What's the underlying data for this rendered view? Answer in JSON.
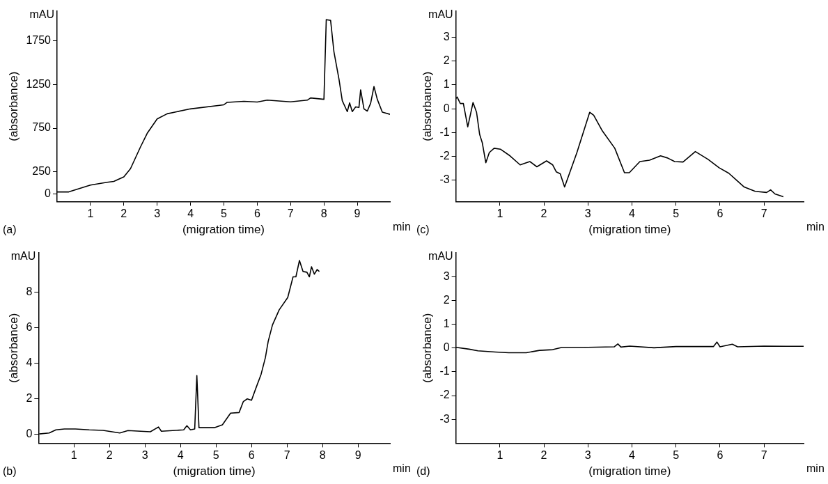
{
  "chart_data": [
    {
      "type": "line",
      "title": "(a)",
      "xlabel": "(migration time)",
      "ylabel": "(absorbance)",
      "annotations": [
        "mAU",
        "min"
      ],
      "grid": false,
      "legend": false,
      "marker": "none",
      "line_style": "solid",
      "xlim": [
        0,
        9.98
      ],
      "ylim": [
        -90,
        2090
      ],
      "xticks": [
        1,
        2,
        3,
        4,
        5,
        6,
        7,
        8,
        9
      ],
      "yticks": [
        0,
        250,
        750,
        1250,
        1750
      ],
      "series": [
        {
          "color": "#000000",
          "x": [
            0,
            0.35,
            1.0,
            1.5,
            1.7,
            2.0,
            2.2,
            2.5,
            2.7,
            3.0,
            3.3,
            4.0,
            5.0,
            5.1,
            5.6,
            6.0,
            6.3,
            7.0,
            7.5,
            7.6,
            8.0,
            8.07,
            8.2,
            8.3,
            8.45,
            8.55,
            8.7,
            8.77,
            8.85,
            8.95,
            9.05,
            9.1,
            9.2,
            9.3,
            9.4,
            9.5,
            9.6,
            9.75,
            9.98
          ],
          "values": [
            20,
            20,
            99,
            130,
            140,
            193,
            286,
            535,
            690,
            856,
            915,
            971,
            1018,
            1046,
            1058,
            1049,
            1071,
            1052,
            1071,
            1096,
            1080,
            1993,
            1984,
            1625,
            1314,
            1065,
            940,
            1040,
            940,
            993,
            987,
            1189,
            971,
            946,
            1034,
            1227,
            1080,
            934,
            909
          ]
        }
      ]
    },
    {
      "type": "line",
      "title": "(c)",
      "xlabel": "(migration time)",
      "ylabel": "(absorbance)",
      "annotations": [
        "mAU",
        "min"
      ],
      "grid": false,
      "legend": false,
      "marker": "none",
      "line_style": "solid",
      "xlim": [
        0,
        7.9
      ],
      "ylim": [
        -3.9,
        4.1
      ],
      "xticks": [
        1,
        2,
        3,
        4,
        5,
        6,
        7
      ],
      "yticks": [
        -3,
        -2,
        -1,
        0,
        1,
        2,
        3
      ],
      "series": [
        {
          "color": "#000000",
          "x": [
            0,
            0.03,
            0.1,
            0.17,
            0.27,
            0.39,
            0.47,
            0.54,
            0.6,
            0.68,
            0.76,
            0.87,
            1.01,
            1.23,
            1.46,
            1.68,
            1.84,
            2.06,
            2.2,
            2.28,
            2.37,
            2.47,
            2.75,
            3.04,
            3.13,
            3.32,
            3.61,
            3.83,
            3.94,
            4.18,
            4.4,
            4.65,
            4.81,
            4.97,
            5.16,
            5.44,
            5.73,
            5.98,
            6.2,
            6.55,
            6.8,
            7.06,
            7.15,
            7.25,
            7.44
          ],
          "values": [
            0.43,
            0.49,
            0.22,
            0.22,
            -0.76,
            0.26,
            -0.15,
            -1.08,
            -1.43,
            -2.27,
            -1.84,
            -1.66,
            -1.7,
            -1.98,
            -2.36,
            -2.22,
            -2.44,
            -2.19,
            -2.36,
            -2.65,
            -2.73,
            -3.29,
            -1.84,
            -0.15,
            -0.27,
            -0.91,
            -1.66,
            -2.69,
            -2.69,
            -2.22,
            -2.16,
            -1.98,
            -2.07,
            -2.22,
            -2.24,
            -1.8,
            -2.13,
            -2.48,
            -2.71,
            -3.29,
            -3.47,
            -3.52,
            -3.41,
            -3.58,
            -3.7
          ]
        }
      ]
    },
    {
      "type": "line",
      "title": "(b)",
      "xlabel": "(migration time)",
      "ylabel": "(absorbance)",
      "annotations": [
        "mAU",
        "min"
      ],
      "grid": false,
      "legend": false,
      "marker": "none",
      "line_style": "solid",
      "xlim": [
        0,
        9.9
      ],
      "ylim": [
        -0.49,
        10.2
      ],
      "xticks": [
        1,
        2,
        3,
        4,
        5,
        6,
        7,
        8,
        9
      ],
      "yticks": [
        0,
        2,
        4,
        6,
        8
      ],
      "series": [
        {
          "color": "#000000",
          "x": [
            0.02,
            0.3,
            0.49,
            0.73,
            1.04,
            1.43,
            1.82,
            2.29,
            2.52,
            3.15,
            3.38,
            3.46,
            4.09,
            4.18,
            4.28,
            4.4,
            4.46,
            4.52,
            4.71,
            4.95,
            5.18,
            5.41,
            5.65,
            5.77,
            5.88,
            6.0,
            6.12,
            6.27,
            6.39,
            6.47,
            6.59,
            6.78,
            7.02,
            7.17,
            7.25,
            7.35,
            7.45,
            7.56,
            7.63,
            7.69,
            7.77,
            7.85,
            7.91
          ],
          "values": [
            0.03,
            0.08,
            0.26,
            0.31,
            0.31,
            0.26,
            0.23,
            0.08,
            0.22,
            0.15,
            0.42,
            0.18,
            0.26,
            0.49,
            0.26,
            0.31,
            3.31,
            0.38,
            0.38,
            0.38,
            0.54,
            1.2,
            1.23,
            1.85,
            2.0,
            1.92,
            2.58,
            3.38,
            4.31,
            5.23,
            6.15,
            7.0,
            7.69,
            8.85,
            8.85,
            9.77,
            9.15,
            9.11,
            8.85,
            9.42,
            9.0,
            9.26,
            9.15
          ]
        }
      ]
    },
    {
      "type": "line",
      "title": "(d)",
      "xlabel": "(migration time)",
      "ylabel": "(absorbance)",
      "annotations": [
        "mAU",
        "min"
      ],
      "grid": false,
      "legend": false,
      "marker": "none",
      "line_style": "solid",
      "xlim": [
        0,
        7.9
      ],
      "ylim": [
        -4,
        4
      ],
      "xticks": [
        1,
        2,
        3,
        4,
        5,
        6,
        7
      ],
      "yticks": [
        -3,
        -2,
        -1,
        0,
        1,
        2,
        3
      ],
      "series": [
        {
          "color": "#000000",
          "x": [
            0,
            0.3,
            0.5,
            0.9,
            1.2,
            1.6,
            1.9,
            2.2,
            2.4,
            3.0,
            3.6,
            3.68,
            3.75,
            3.95,
            4.5,
            5.0,
            5.5,
            5.85,
            5.93,
            6.0,
            6.28,
            6.4,
            7.0,
            7.5,
            7.9
          ],
          "values": [
            0.03,
            -0.05,
            -0.12,
            -0.17,
            -0.2,
            -0.2,
            -0.1,
            -0.07,
            0.02,
            0.03,
            0.05,
            0.17,
            0.04,
            0.08,
            0.01,
            0.06,
            0.06,
            0.06,
            0.25,
            0.05,
            0.16,
            0.05,
            0.08,
            0.07,
            0.07
          ]
        }
      ]
    }
  ]
}
